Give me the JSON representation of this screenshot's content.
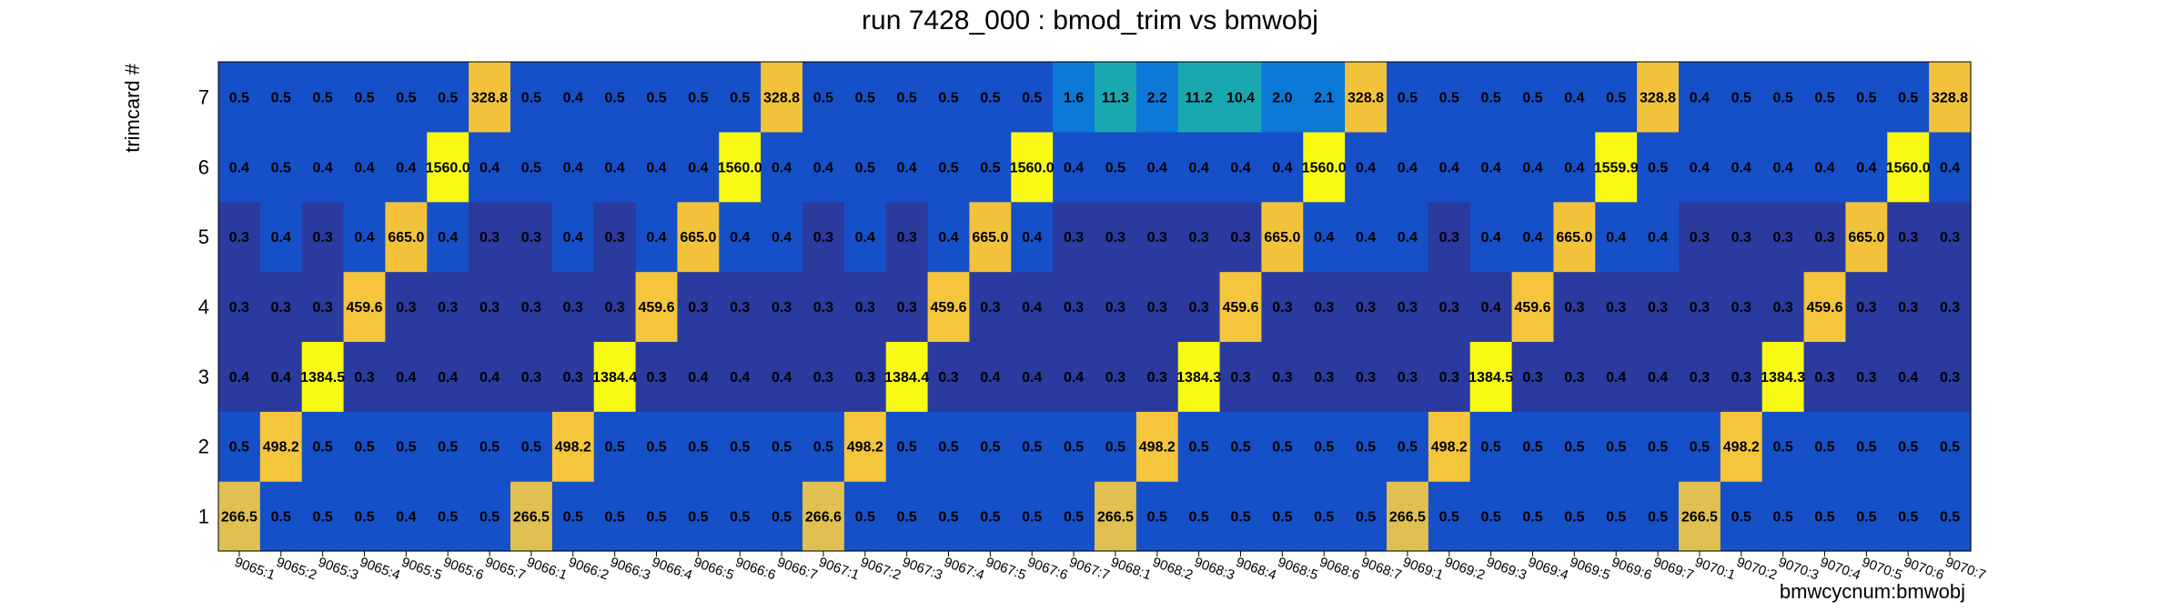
{
  "chart_data": {
    "type": "heatmap",
    "title": "run 7428_000 : bmod_trim vs bmwobj",
    "xlabel": "bmwcycnum:bmwobj",
    "ylabel": "trimcard #",
    "x_categories": [
      "9065:1",
      "9065:2",
      "9065:3",
      "9065:4",
      "9065:5",
      "9065:6",
      "9065:7",
      "9066:1",
      "9066:2",
      "9066:3",
      "9066:4",
      "9066:5",
      "9066:6",
      "9066:7",
      "9067:1",
      "9067:2",
      "9067:3",
      "9067:4",
      "9067:5",
      "9067:6",
      "9067:7",
      "9068:1",
      "9068:2",
      "9068:3",
      "9068:4",
      "9068:5",
      "9068:6",
      "9068:7",
      "9069:1",
      "9069:2",
      "9069:3",
      "9069:4",
      "9069:5",
      "9069:6",
      "9069:7",
      "9070:1",
      "9070:2",
      "9070:3",
      "9070:4",
      "9070:5",
      "9070:6",
      "9070:7"
    ],
    "y_categories": [
      "1",
      "2",
      "3",
      "4",
      "5",
      "6",
      "7"
    ],
    "values": [
      [
        266.5,
        0.5,
        0.5,
        0.5,
        0.4,
        0.5,
        0.5,
        266.5,
        0.5,
        0.5,
        0.5,
        0.5,
        0.5,
        0.5,
        266.6,
        0.5,
        0.5,
        0.5,
        0.5,
        0.5,
        0.5,
        266.5,
        0.5,
        0.5,
        0.5,
        0.5,
        0.5,
        0.5,
        266.5,
        0.5,
        0.5,
        0.5,
        0.5,
        0.5,
        0.5,
        266.5,
        0.5,
        0.5,
        0.5,
        0.5,
        0.5,
        0.5
      ],
      [
        0.5,
        498.2,
        0.5,
        0.5,
        0.5,
        0.5,
        0.5,
        0.5,
        498.2,
        0.5,
        0.5,
        0.5,
        0.5,
        0.5,
        0.5,
        498.2,
        0.5,
        0.5,
        0.5,
        0.5,
        0.5,
        0.5,
        498.2,
        0.5,
        0.5,
        0.5,
        0.5,
        0.5,
        0.5,
        498.2,
        0.5,
        0.5,
        0.5,
        0.5,
        0.5,
        0.5,
        498.2,
        0.5,
        0.5,
        0.5,
        0.5,
        0.5
      ],
      [
        0.4,
        0.4,
        1384.5,
        0.3,
        0.4,
        0.4,
        0.4,
        0.3,
        0.3,
        1384.4,
        0.3,
        0.4,
        0.4,
        0.4,
        0.3,
        0.3,
        1384.4,
        0.3,
        0.4,
        0.4,
        0.4,
        0.3,
        0.3,
        1384.3,
        0.3,
        0.3,
        0.3,
        0.3,
        0.3,
        0.3,
        1384.5,
        0.3,
        0.3,
        0.4,
        0.4,
        0.3,
        0.3,
        1384.3,
        0.3,
        0.3,
        0.4,
        0.3
      ],
      [
        0.3,
        0.3,
        0.3,
        459.6,
        0.3,
        0.3,
        0.3,
        0.3,
        0.3,
        0.3,
        459.6,
        0.3,
        0.3,
        0.3,
        0.3,
        0.3,
        0.3,
        459.6,
        0.3,
        0.4,
        0.3,
        0.3,
        0.3,
        0.3,
        459.6,
        0.3,
        0.3,
        0.3,
        0.3,
        0.3,
        0.4,
        459.6,
        0.3,
        0.3,
        0.3,
        0.3,
        0.3,
        0.3,
        459.6,
        0.3,
        0.3,
        0.3
      ],
      [
        0.3,
        0.4,
        0.3,
        0.4,
        665.0,
        0.4,
        0.3,
        0.3,
        0.4,
        0.3,
        0.4,
        665.0,
        0.4,
        0.4,
        0.3,
        0.4,
        0.3,
        0.4,
        665.0,
        0.4,
        0.3,
        0.3,
        0.3,
        0.3,
        0.3,
        665.0,
        0.4,
        0.4,
        0.4,
        0.3,
        0.4,
        0.4,
        665.0,
        0.4,
        0.4,
        0.3,
        0.3,
        0.3,
        0.3,
        665.0,
        0.3,
        0.3
      ],
      [
        0.4,
        0.5,
        0.4,
        0.4,
        0.4,
        1560.0,
        0.4,
        0.5,
        0.4,
        0.4,
        0.4,
        0.4,
        1560.0,
        0.4,
        0.4,
        0.5,
        0.4,
        0.5,
        0.5,
        1560.0,
        0.4,
        0.5,
        0.4,
        0.4,
        0.4,
        0.4,
        1560.0,
        0.4,
        0.4,
        0.4,
        0.4,
        0.4,
        0.4,
        1559.9,
        0.5,
        0.4,
        0.4,
        0.4,
        0.4,
        0.4,
        1560.0,
        0.4
      ],
      [
        0.5,
        0.5,
        0.5,
        0.5,
        0.5,
        0.5,
        328.8,
        0.5,
        0.4,
        0.5,
        0.5,
        0.5,
        0.5,
        328.8,
        0.5,
        0.5,
        0.5,
        0.5,
        0.5,
        0.5,
        1.6,
        11.3,
        2.2,
        11.2,
        10.4,
        2.0,
        2.1,
        328.8,
        0.5,
        0.5,
        0.5,
        0.5,
        0.4,
        0.5,
        328.8,
        0.4,
        0.5,
        0.5,
        0.5,
        0.5,
        0.5,
        328.8
      ]
    ],
    "colors": {
      "low": "#2a3a9e",
      "lowmid": "#1650c8",
      "mid": "#0c78d8",
      "teal": "#1aa8b0",
      "high_amber": "#f2c23a",
      "high_gold": "#e0c050",
      "high_orange": "#f5c53c",
      "top_yellow": "#f8fa14"
    }
  }
}
